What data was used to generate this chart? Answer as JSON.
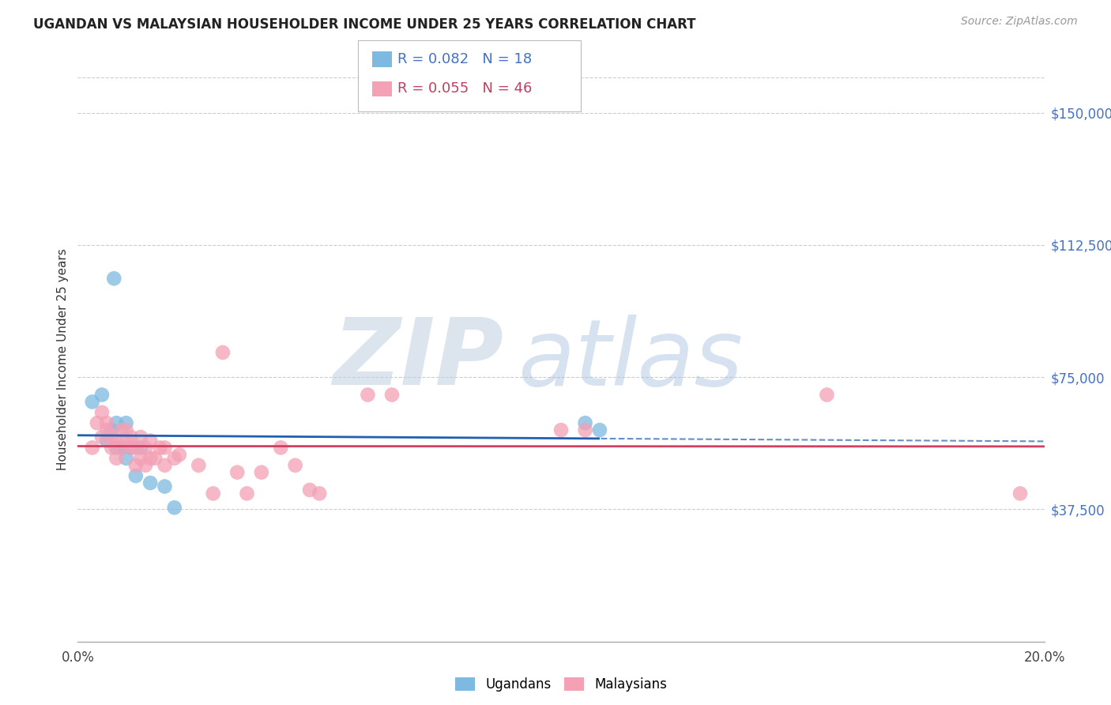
{
  "title": "UGANDAN VS MALAYSIAN HOUSEHOLDER INCOME UNDER 25 YEARS CORRELATION CHART",
  "source": "Source: ZipAtlas.com",
  "ylabel": "Householder Income Under 25 years",
  "xlim": [
    0.0,
    0.2
  ],
  "ylim": [
    0,
    160000
  ],
  "ytick_vals": [
    37500,
    75000,
    112500,
    150000
  ],
  "ytick_labels": [
    "$37,500",
    "$75,000",
    "$112,500",
    "$150,000"
  ],
  "ugandan_R": 0.082,
  "ugandan_N": 18,
  "malaysian_R": 0.055,
  "malaysian_N": 46,
  "ugandan_color": "#7db9e0",
  "malaysian_color": "#f4a0b5",
  "ugandan_line_color": "#2060b0",
  "malaysian_line_color": "#d04060",
  "background_color": "#ffffff",
  "grid_color": "#cccccc",
  "ugandans_x": [
    0.003,
    0.0075,
    0.005,
    0.006,
    0.007,
    0.008,
    0.008,
    0.009,
    0.01,
    0.01,
    0.011,
    0.012,
    0.013,
    0.015,
    0.018,
    0.02,
    0.105,
    0.108
  ],
  "ugandans_y": [
    68000,
    103000,
    70000,
    57000,
    60000,
    55000,
    62000,
    55000,
    52000,
    62000,
    55000,
    47000,
    55000,
    45000,
    44000,
    38000,
    62000,
    60000
  ],
  "malaysians_x": [
    0.003,
    0.004,
    0.005,
    0.005,
    0.006,
    0.006,
    0.007,
    0.007,
    0.008,
    0.008,
    0.009,
    0.009,
    0.01,
    0.01,
    0.011,
    0.011,
    0.012,
    0.012,
    0.013,
    0.013,
    0.014,
    0.014,
    0.015,
    0.015,
    0.016,
    0.017,
    0.018,
    0.018,
    0.02,
    0.021,
    0.025,
    0.028,
    0.03,
    0.033,
    0.035,
    0.038,
    0.042,
    0.045,
    0.048,
    0.05,
    0.06,
    0.065,
    0.1,
    0.105,
    0.155,
    0.195
  ],
  "malaysians_y": [
    55000,
    62000,
    58000,
    65000,
    60000,
    62000,
    55000,
    58000,
    52000,
    57000,
    60000,
    55000,
    57000,
    60000,
    55000,
    58000,
    50000,
    55000,
    52000,
    58000,
    50000,
    55000,
    52000,
    57000,
    52000,
    55000,
    50000,
    55000,
    52000,
    53000,
    50000,
    42000,
    82000,
    48000,
    42000,
    48000,
    55000,
    50000,
    43000,
    42000,
    70000,
    70000,
    60000,
    60000,
    70000,
    42000
  ]
}
